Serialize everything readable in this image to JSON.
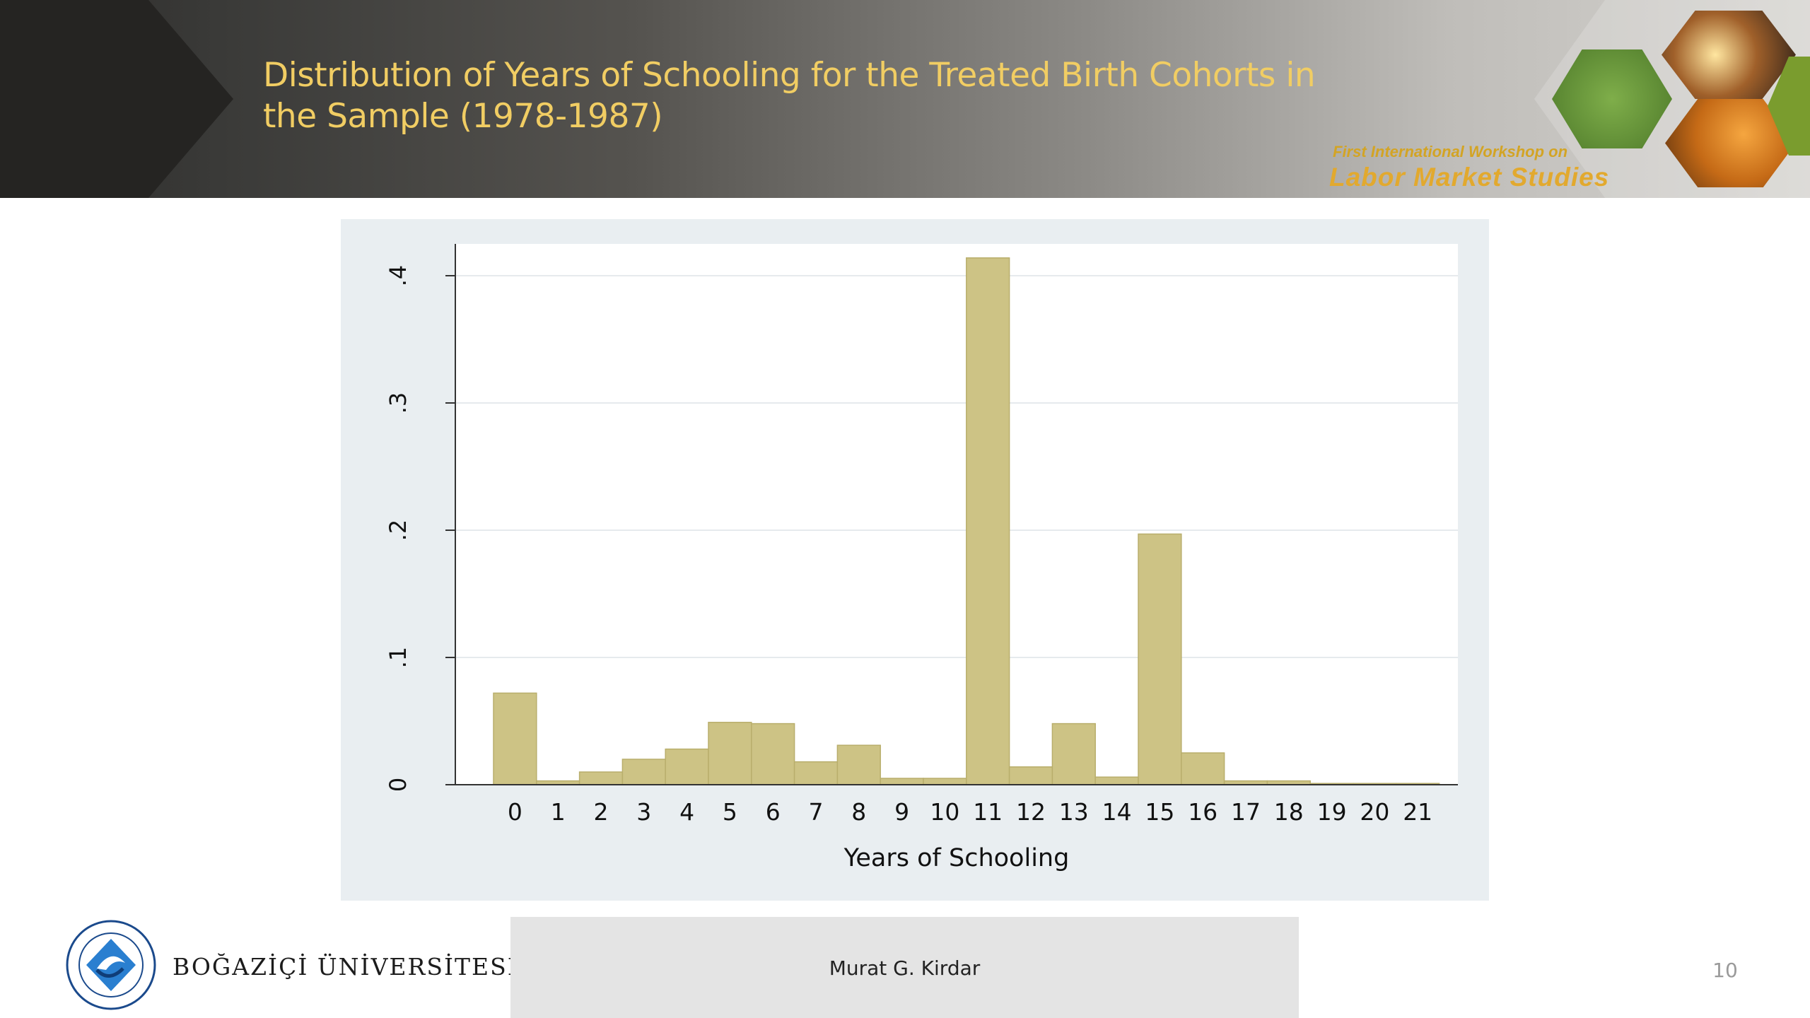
{
  "slide": {
    "title": "Distribution of Years of Schooling for the Treated Birth Cohorts in the Sample (1978-1987)",
    "workshop_line1": "First International Workshop on",
    "workshop_line2": "Labor Market Studies",
    "author": "Murat G. Kirdar",
    "page_number": "10",
    "university": "BOĞAZİÇİ ÜNİVERSİTESİ"
  },
  "colors": {
    "bar": "#cdc385",
    "bar_stroke": "#b9ae6c",
    "title": "#f1cd63",
    "panel": "#e9eef1"
  },
  "chart_data": {
    "type": "bar",
    "xlabel": "Years of Schooling",
    "ylabel": "",
    "ylim": [
      0,
      0.4
    ],
    "grid": true,
    "y_ticks": [
      {
        "value": 0,
        "label": "0"
      },
      {
        "value": 0.1,
        "label": ".1"
      },
      {
        "value": 0.2,
        "label": ".2"
      },
      {
        "value": 0.3,
        "label": ".3"
      },
      {
        "value": 0.4,
        "label": ".4"
      }
    ],
    "categories": [
      "0",
      "1",
      "2",
      "3",
      "4",
      "5",
      "6",
      "7",
      "8",
      "9",
      "10",
      "11",
      "12",
      "13",
      "14",
      "15",
      "16",
      "17",
      "18",
      "19",
      "20",
      "21"
    ],
    "values": [
      0.072,
      0.003,
      0.01,
      0.02,
      0.028,
      0.049,
      0.048,
      0.018,
      0.031,
      0.005,
      0.005,
      0.414,
      0.014,
      0.048,
      0.006,
      0.197,
      0.025,
      0.003,
      0.003,
      0.001,
      0.001,
      0.001
    ]
  }
}
